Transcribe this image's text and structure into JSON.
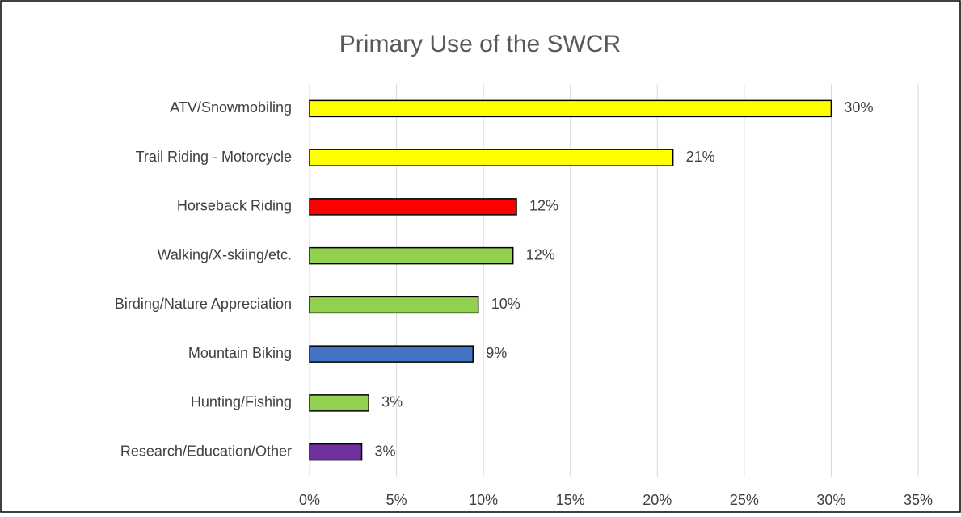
{
  "chart_data": {
    "type": "bar",
    "orientation": "horizontal",
    "title": "Primary Use of the SWCR",
    "categories": [
      "ATV/Snowmobiling",
      "Trail Riding - Motorcycle",
      "Horseback Riding",
      "Walking/X-skiing/etc.",
      "Birding/Nature Appreciation",
      "Mountain Biking",
      "Hunting/Fishing",
      "Research/Education/Other"
    ],
    "values": [
      30,
      20.9,
      11.9,
      11.7,
      9.7,
      9.4,
      3.4,
      3.0
    ],
    "value_labels": [
      "30%",
      "21%",
      "12%",
      "12%",
      "10%",
      "9%",
      "3%",
      "3%"
    ],
    "colors": [
      "#ffff00",
      "#ffff00",
      "#ff0000",
      "#92d050",
      "#92d050",
      "#4472c4",
      "#92d050",
      "#7030a0"
    ],
    "xlim": [
      0,
      35
    ],
    "xticks": [
      {
        "value": 0,
        "label": "0%"
      },
      {
        "value": 5,
        "label": "5%"
      },
      {
        "value": 10,
        "label": "10%"
      },
      {
        "value": 15,
        "label": "15%"
      },
      {
        "value": 20,
        "label": "20%"
      },
      {
        "value": 25,
        "label": "25%"
      },
      {
        "value": 30,
        "label": "30%"
      },
      {
        "value": 35,
        "label": "35%"
      }
    ],
    "grid": true
  }
}
